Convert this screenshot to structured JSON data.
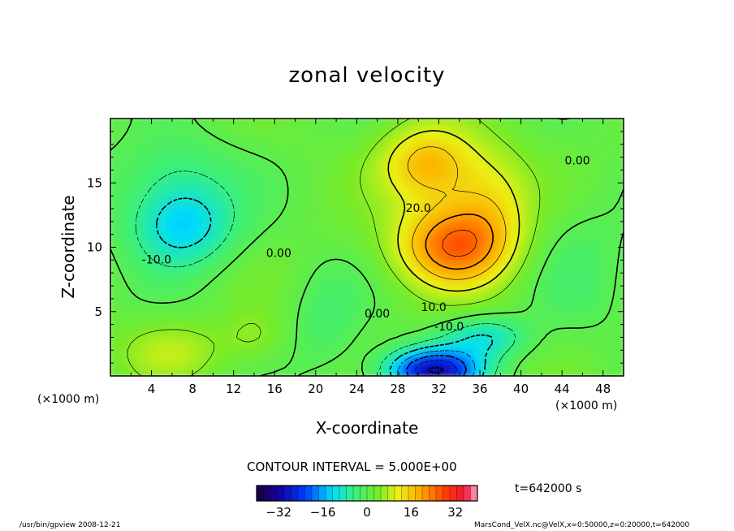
{
  "chart_data": {
    "type": "heatmap",
    "title": "zonal velocity",
    "xlabel": "X-coordinate",
    "ylabel": "Z-coordinate",
    "x_unit": "(×1000 m)",
    "xlim": [
      0,
      50
    ],
    "ylim": [
      0,
      20
    ],
    "x_ticks": [
      4,
      8,
      12,
      16,
      20,
      24,
      28,
      32,
      36,
      40,
      44,
      48
    ],
    "y_ticks": [
      5,
      10,
      15
    ],
    "contour_interval_text": "CONTOUR INTERVAL = 5.000E+00",
    "contour_interval": 5.0,
    "contour_labels": [
      {
        "text": "20.0",
        "x": 30.0,
        "z": 13.0
      },
      {
        "text": "10.0",
        "x": 31.5,
        "z": 5.3
      },
      {
        "text": "-10.0",
        "x": 33.0,
        "z": 3.8
      },
      {
        "text": "0.00",
        "x": 26.0,
        "z": 4.8
      },
      {
        "text": "-10.0",
        "x": 4.5,
        "z": 9.0
      },
      {
        "text": "0.00",
        "x": 16.4,
        "z": 9.5
      },
      {
        "text": "0.00",
        "x": 45.5,
        "z": 16.7
      }
    ],
    "colorbar": {
      "range": [
        -40,
        40
      ],
      "ticks": [
        -32,
        -16,
        0,
        16,
        32
      ]
    },
    "features": [
      {
        "kind": "max",
        "x": 33.5,
        "z": 10.0,
        "value": 32
      },
      {
        "kind": "max",
        "x": 31.0,
        "z": 16.5,
        "value": 26
      },
      {
        "kind": "min",
        "x": 7.0,
        "z": 11.8,
        "value": -14
      },
      {
        "kind": "min",
        "x": 31.5,
        "z": 0.8,
        "value": -32
      }
    ],
    "time_label": "t=642000  s"
  },
  "footer": {
    "left": "/usr/bin/gpview   2008-12-21",
    "right": "MarsCond_VelX.nc@VelX,x=0:50000,z=0:20000,t=642000"
  }
}
